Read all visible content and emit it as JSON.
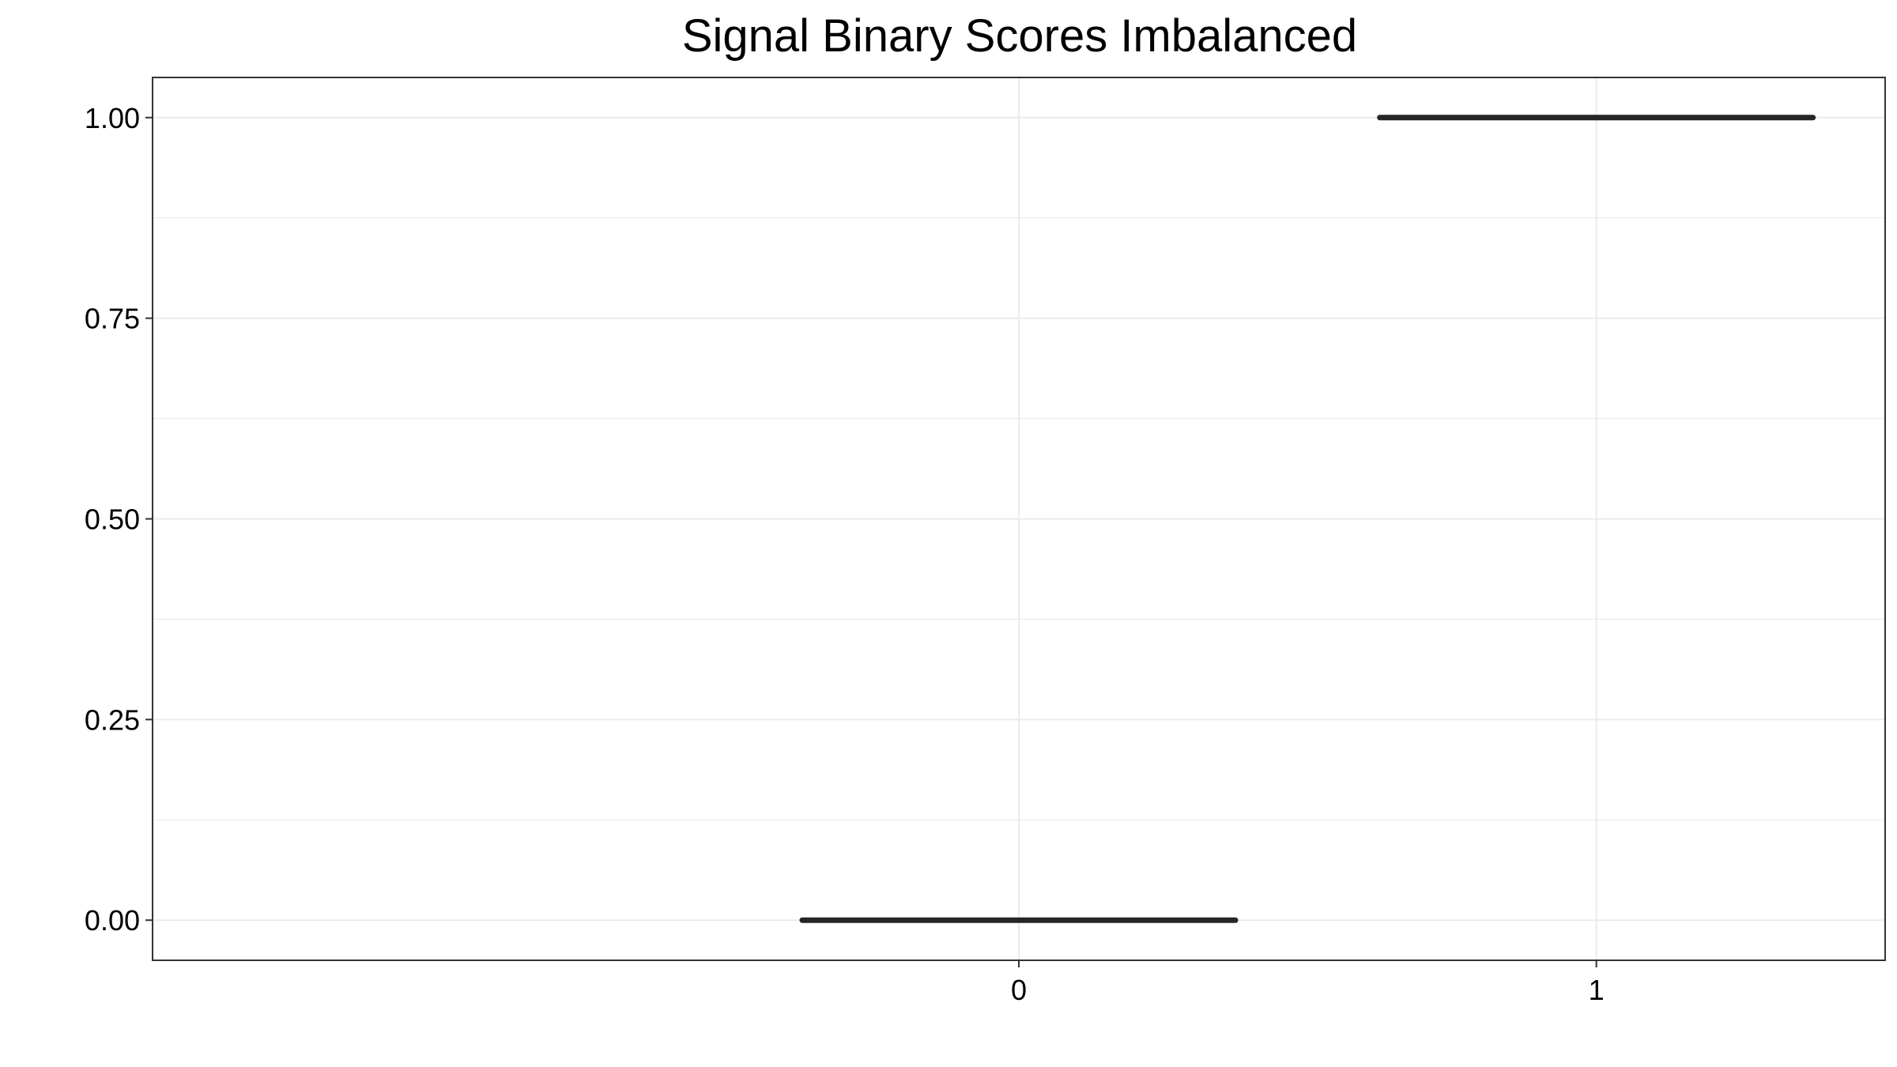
{
  "chart_data": {
    "type": "box",
    "title": "Signal Binary Scores Imbalanced",
    "xlabel": "",
    "ylabel": "",
    "categories": [
      "0",
      "1"
    ],
    "values": [
      0.0,
      1.0
    ],
    "ylim": [
      -0.05,
      1.05
    ],
    "y_ticks": [
      0.0,
      0.25,
      0.5,
      0.75,
      1.0
    ],
    "y_tick_labels": [
      "0.00",
      "0.25",
      "0.50",
      "0.75",
      "1.00"
    ],
    "x_tick_labels": [
      "0",
      "1"
    ],
    "grid": true,
    "legend": "none",
    "colors": {
      "mark": "#262626",
      "grid": "#ebebeb",
      "panel_border": "#333333",
      "background": "#ffffff"
    }
  }
}
